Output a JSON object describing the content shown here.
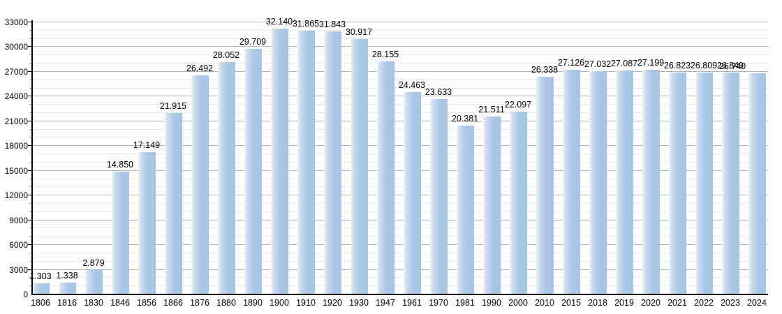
{
  "chart_data": {
    "type": "bar",
    "title": "",
    "xlabel": "",
    "ylabel": "",
    "categories": [
      "1806",
      "1816",
      "1830",
      "1846",
      "1856",
      "1866",
      "1876",
      "1880",
      "1890",
      "1900",
      "1910",
      "1920",
      "1930",
      "1947",
      "1961",
      "1970",
      "1981",
      "1990",
      "2000",
      "2010",
      "2015",
      "2018",
      "2019",
      "2020",
      "2021",
      "2022",
      "2023",
      "2024"
    ],
    "values": [
      1303,
      1338,
      2879,
      14850,
      17149,
      21915,
      26492,
      28052,
      29709,
      32140,
      31865,
      31843,
      30917,
      28155,
      24463,
      23633,
      20381,
      21511,
      22097,
      26338,
      27126,
      27032,
      27087,
      27199,
      26823,
      26809,
      26849,
      26740
    ],
    "value_labels": [
      "1.303",
      "1.338",
      "2.879",
      "14.850",
      "17.149",
      "21.915",
      "26.492",
      "28.052",
      "29.709",
      "32.140",
      "31.865",
      "31.843",
      "30.917",
      "28.155",
      "24.463",
      "23.633",
      "20.381",
      "21.511",
      "22.097",
      "26.338",
      "27.126",
      "27.032",
      "27.087",
      "27.199",
      "26.823",
      "26.809",
      "26.849",
      "26.740"
    ],
    "ylim": [
      0,
      33000
    ],
    "ytick_step": 3000,
    "minor_gridline_step": 1000,
    "y_tick_labels": [
      "0",
      "3000",
      "6000",
      "9000",
      "12000",
      "15000",
      "18000",
      "21000",
      "24000",
      "27000",
      "30000",
      "33000"
    ],
    "grid": "on",
    "legend": "none",
    "notes": "last two value labels (2023, 2024) overlap each other in the rendering",
    "colors": {
      "bar": "#abc7e6",
      "bar_edge_light": "#f0f5fc",
      "gridline_major": "#b2b2b2",
      "gridline_minor": "#e7e7e7",
      "axis": "#000000",
      "background": "#ffffff",
      "label_text": "#000000"
    }
  }
}
